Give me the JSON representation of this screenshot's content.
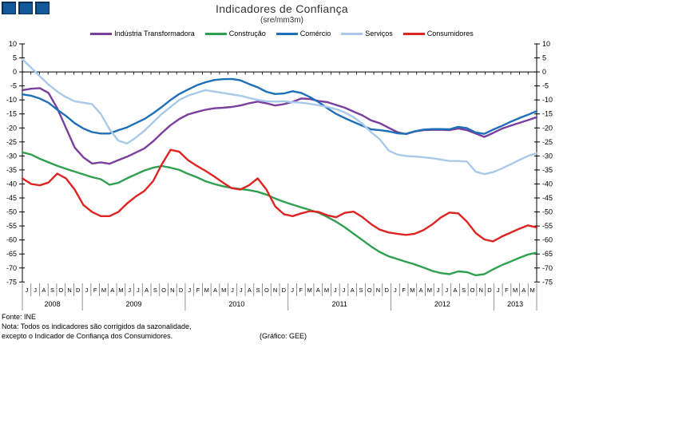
{
  "title": "Indicadores de Confiança",
  "subtitle": "(sre/mm3m)",
  "logo": {
    "square_count": 3,
    "fill": "#14599A",
    "edge": "#0B3055"
  },
  "footer": {
    "source": "Fonte: INE",
    "note_line1": "Nota: Todos os indicadores são corrigidos da sazonalidade,",
    "note_line2": "excepto o Indicador de Confiança dos Consumidores.",
    "credit": "(Gráfico: GEE)"
  },
  "chart_data": {
    "type": "line",
    "legend_position": "top",
    "grid": false,
    "zero_axis_line": true,
    "ylim": [
      -75,
      10
    ],
    "y_ticks": [
      10,
      5,
      0,
      -5,
      -10,
      -15,
      -20,
      -25,
      -30,
      -35,
      -40,
      -45,
      -50,
      -55,
      -60,
      -65,
      -70,
      -75
    ],
    "x_years": [
      {
        "label": "2008",
        "month_letters": [
          "J",
          "J",
          "A",
          "S",
          "O",
          "N",
          "D"
        ]
      },
      {
        "label": "2009",
        "month_letters": [
          "J",
          "F",
          "M",
          "A",
          "M",
          "J",
          "J",
          "A",
          "S",
          "O",
          "N",
          "D"
        ]
      },
      {
        "label": "2010",
        "month_letters": [
          "J",
          "F",
          "M",
          "A",
          "M",
          "J",
          "J",
          "A",
          "S",
          "O",
          "N",
          "D"
        ]
      },
      {
        "label": "2011",
        "month_letters": [
          "J",
          "F",
          "M",
          "A",
          "M",
          "J",
          "J",
          "A",
          "S",
          "O",
          "N",
          "D"
        ]
      },
      {
        "label": "2012",
        "month_letters": [
          "J",
          "F",
          "M",
          "A",
          "M",
          "J",
          "J",
          "A",
          "S",
          "O",
          "N",
          "D"
        ]
      },
      {
        "label": "2013",
        "month_letters": [
          "J",
          "F",
          "M",
          "A",
          "M"
        ]
      }
    ],
    "series": [
      {
        "name": "Indústria Transformadora",
        "color": "#7A3F9D",
        "values": [
          -6.5,
          -6,
          -5.8,
          -7.5,
          -13,
          -20,
          -27,
          -30.5,
          -32.7,
          -32.3,
          -32.8,
          -31.5,
          -30.3,
          -28.8,
          -27.3,
          -24.8,
          -21.8,
          -19,
          -16.8,
          -15.2,
          -14.3,
          -13.5,
          -13,
          -12.8,
          -12.5,
          -12,
          -11.2,
          -10.6,
          -11.2,
          -12,
          -11.5,
          -10.7,
          -9.5,
          -9.7,
          -10.4,
          -10.8,
          -11.8,
          -12.8,
          -14.2,
          -15.5,
          -17.3,
          -18.3,
          -19.9,
          -21.5,
          -22.2,
          -21.3,
          -20.8,
          -20.7,
          -20.7,
          -20.8,
          -20.2,
          -20.8,
          -22,
          -23.2,
          -21.8,
          -20.3,
          -19.2,
          -18.2,
          -17.2,
          -16.2
        ]
      },
      {
        "name": "Construção",
        "color": "#2FA050",
        "values": [
          -28.7,
          -29.5,
          -31,
          -32.3,
          -33.5,
          -34.6,
          -35.6,
          -36.6,
          -37.6,
          -38.3,
          -40.3,
          -39.6,
          -38,
          -36.6,
          -35.2,
          -34.2,
          -33.6,
          -34.2,
          -35,
          -36.4,
          -37.6,
          -39,
          -40,
          -40.8,
          -41.4,
          -41.8,
          -42.2,
          -42.8,
          -43.8,
          -45.2,
          -46.4,
          -47.4,
          -48.4,
          -49.3,
          -50.3,
          -51.8,
          -53.5,
          -55.5,
          -57.8,
          -60,
          -62.3,
          -64.3,
          -65.8,
          -66.8,
          -67.8,
          -68.7,
          -69.8,
          -71,
          -71.8,
          -72.2,
          -71.2,
          -71.5,
          -72.6,
          -72.2,
          -70.5,
          -69,
          -67.7,
          -66.4,
          -65.2,
          -64.5
        ]
      },
      {
        "name": "Comércio",
        "color": "#1E6FB8",
        "values": [
          -8,
          -8.5,
          -9.5,
          -11,
          -13.5,
          -15.7,
          -18.3,
          -20.2,
          -21.5,
          -22,
          -22,
          -20.8,
          -19.8,
          -18.3,
          -16.8,
          -14.8,
          -12.5,
          -10,
          -7.9,
          -6.3,
          -4.8,
          -3.7,
          -2.9,
          -2.6,
          -2.5,
          -3,
          -4.3,
          -5.5,
          -7.1,
          -7.9,
          -7.7,
          -6.9,
          -7.5,
          -9,
          -10.8,
          -13,
          -15,
          -16.5,
          -17.9,
          -19.2,
          -20.5,
          -20.8,
          -21.2,
          -21.9,
          -22.1,
          -21.2,
          -20.6,
          -20.4,
          -20.4,
          -20.5,
          -19.6,
          -20.1,
          -21.6,
          -22.1,
          -20.6,
          -19.3,
          -17.8,
          -16.5,
          -15.3,
          -14
        ]
      },
      {
        "name": "Serviços",
        "color": "#A9C9EA",
        "values": [
          4.5,
          1.5,
          -1.5,
          -4.5,
          -7,
          -9,
          -10.5,
          -11,
          -11.5,
          -15,
          -20.5,
          -24.5,
          -25.6,
          -23.5,
          -21,
          -18,
          -15,
          -12.5,
          -10,
          -8.5,
          -7.5,
          -6.5,
          -7,
          -7.5,
          -8,
          -8.5,
          -9.3,
          -10,
          -10.5,
          -10.6,
          -10.5,
          -10.8,
          -11,
          -11.4,
          -11.9,
          -12.5,
          -13.3,
          -14.5,
          -16.2,
          -18.5,
          -21.5,
          -24,
          -28,
          -29.5,
          -30,
          -30.2,
          -30.5,
          -30.8,
          -31.3,
          -31.8,
          -31.8,
          -32,
          -35.6,
          -36.5,
          -35.8,
          -34.5,
          -33,
          -31.5,
          -30,
          -29
        ]
      },
      {
        "name": "Consumidores",
        "color": "#DE2423",
        "values": [
          -38,
          -40,
          -40.5,
          -39.5,
          -36.3,
          -38,
          -42,
          -47.5,
          -50,
          -51.5,
          -51.5,
          -50,
          -47,
          -44.5,
          -42.5,
          -39,
          -33,
          -27.8,
          -28.5,
          -31.5,
          -33.5,
          -35.3,
          -37.3,
          -39.5,
          -41.5,
          -42,
          -40.5,
          -38,
          -42,
          -48,
          -50.8,
          -51.5,
          -50.5,
          -49.7,
          -50,
          -51.2,
          -51.9,
          -50.3,
          -49.9,
          -51.8,
          -54.3,
          -56.3,
          -57.3,
          -57.8,
          -58.2,
          -57.8,
          -56.5,
          -54.5,
          -52,
          -50.2,
          -50.5,
          -53.5,
          -57.5,
          -59.8,
          -60.5,
          -58.8,
          -57.4,
          -56,
          -54.8,
          -55.5
        ]
      }
    ]
  }
}
